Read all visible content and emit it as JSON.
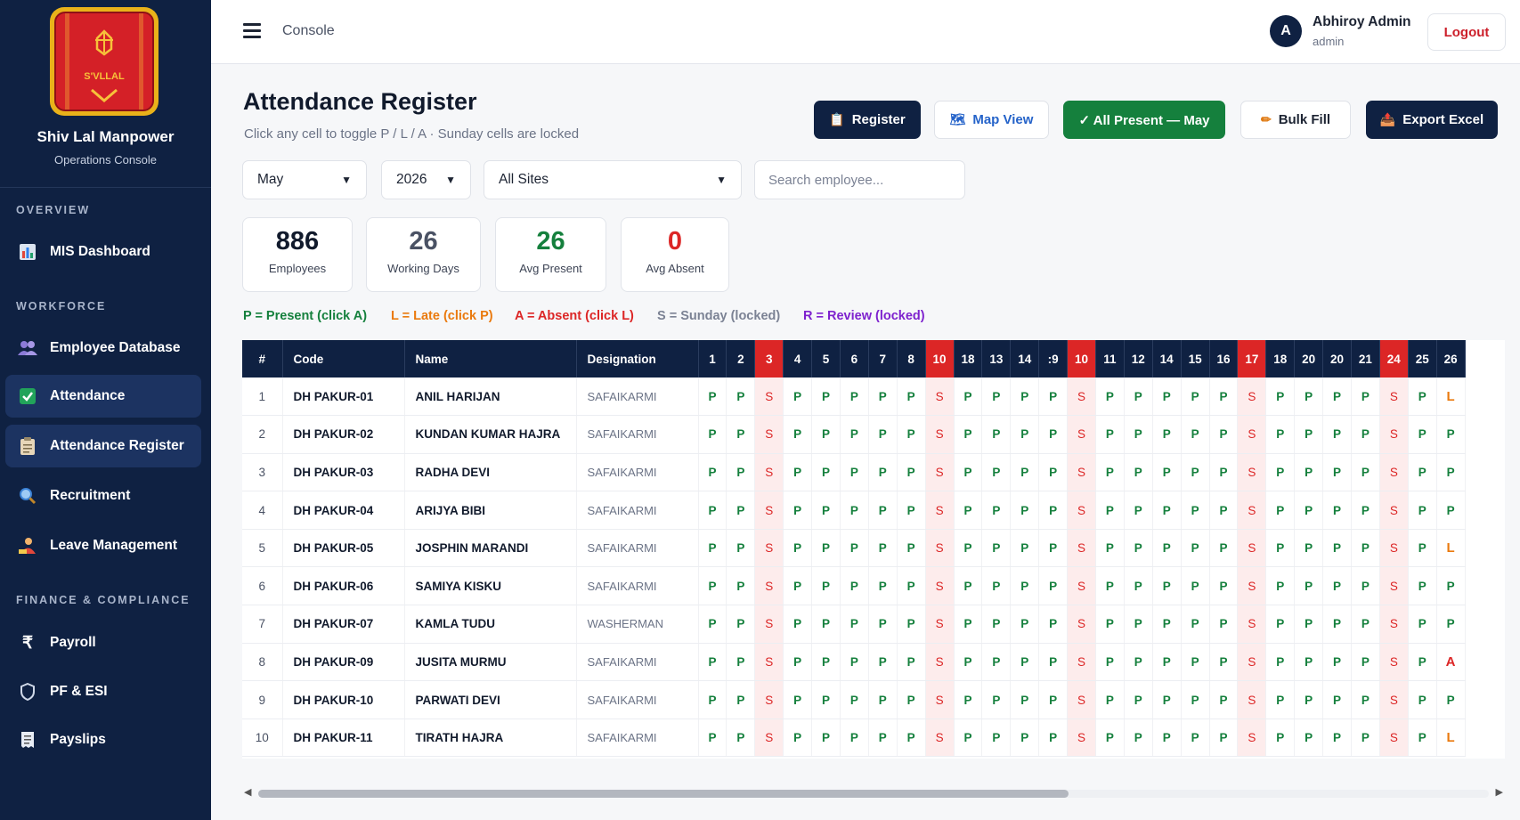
{
  "sidebar": {
    "brand": "Shiv Lal Manpower",
    "subtitle": "Operations Console",
    "sections": [
      "OVERVIEW",
      "WORKFORCE",
      "FINANCE & COMPLIANCE"
    ],
    "items": [
      {
        "label": "MIS Dashboard",
        "icon": "bar-chart-icon"
      },
      {
        "label": "Employee Database",
        "icon": "users-icon"
      },
      {
        "label": "Attendance",
        "icon": "check-box-icon"
      },
      {
        "label": "Attendance Register",
        "icon": "clipboard-icon"
      },
      {
        "label": "Recruitment",
        "icon": "magnifier-icon"
      },
      {
        "label": "Leave Management",
        "icon": "person-leave-icon"
      },
      {
        "label": "Payroll",
        "icon": "rupee-icon"
      },
      {
        "label": "PF & ESI",
        "icon": "shield-icon"
      },
      {
        "label": "Payslips",
        "icon": "receipt-icon"
      }
    ]
  },
  "topbar": {
    "title": "Console",
    "user_initial": "A",
    "user_name": "Abhiroy Admin",
    "user_role": "admin",
    "logout_label": "Logout"
  },
  "header": {
    "title": "Attendance Register",
    "subtitle": "Click any cell to toggle P / L / A  ·  Sunday cells are locked",
    "buttons": {
      "register": "Register",
      "map_view": "Map View",
      "all_present": "✓ All Present — May",
      "bulk_fill": "Bulk Fill",
      "export": "Export Excel"
    }
  },
  "filters": {
    "month": "May",
    "year": "2026",
    "site": "All Sites",
    "search_placeholder": "Search employee..."
  },
  "stats": [
    {
      "value": "886",
      "label": "Employees",
      "color": "#111a2c"
    },
    {
      "value": "26",
      "label": "Working Days",
      "color": "#4a5264"
    },
    {
      "value": "26",
      "label": "Avg Present",
      "color": "#15803d"
    },
    {
      "value": "0",
      "label": "Avg Absent",
      "color": "#dc2626"
    }
  ],
  "legend": [
    {
      "text": "P = Present (click A)",
      "color": "#15803d"
    },
    {
      "text": "L = Late (click P)",
      "color": "#ea7a0e"
    },
    {
      "text": "A = Absent (click L)",
      "color": "#dc2626"
    },
    {
      "text": "S = Sunday (locked)",
      "color": "#7b8294"
    },
    {
      "text": "R = Review (locked)",
      "color": "#7e22ce"
    }
  ],
  "table": {
    "headers": [
      "#",
      "Code",
      "Name",
      "Designation"
    ],
    "days": [
      "1",
      "2",
      "3",
      "4",
      "5",
      "6",
      "7",
      "8",
      "10",
      "18",
      "13",
      "14",
      ":9",
      "10",
      "11",
      "12",
      "14",
      "15",
      "16",
      "17",
      "18",
      "20",
      "20",
      "21",
      "24",
      "25",
      "26"
    ],
    "sunday_days": [
      2,
      8,
      13,
      19,
      24
    ],
    "rows": [
      {
        "idx": "1",
        "code": "DH PAKUR-01",
        "name": "ANIL HARIJAN",
        "designation": "SAFAIKARMI",
        "cells": [
          "P",
          "P",
          "S",
          "P",
          "P",
          "P",
          "P",
          "P",
          "S",
          "P",
          "P",
          "P",
          "P",
          "S",
          "P",
          "P",
          "P",
          "P",
          "P",
          "S",
          "P",
          "P",
          "P",
          "P",
          "S",
          "P",
          "L"
        ]
      },
      {
        "idx": "2",
        "code": "DH PAKUR-02",
        "name": "KUNDAN KUMAR HAJRA",
        "designation": "SAFAIKARMI",
        "cells": [
          "P",
          "P",
          "S",
          "P",
          "P",
          "P",
          "P",
          "P",
          "S",
          "P",
          "P",
          "P",
          "P",
          "S",
          "P",
          "P",
          "P",
          "P",
          "P",
          "S",
          "P",
          "P",
          "P",
          "P",
          "S",
          "P",
          "P"
        ]
      },
      {
        "idx": "3",
        "code": "DH PAKUR-03",
        "name": "RADHA DEVI",
        "designation": "SAFAIKARMI",
        "cells": [
          "P",
          "P",
          "S",
          "P",
          "P",
          "P",
          "P",
          "P",
          "S",
          "P",
          "P",
          "P",
          "P",
          "S",
          "P",
          "P",
          "P",
          "P",
          "P",
          "S",
          "P",
          "P",
          "P",
          "P",
          "S",
          "P",
          "P"
        ]
      },
      {
        "idx": "4",
        "code": "DH PAKUR-04",
        "name": "ARIJYA BIBI",
        "designation": "SAFAIKARMI",
        "cells": [
          "P",
          "P",
          "S",
          "P",
          "P",
          "P",
          "P",
          "P",
          "S",
          "P",
          "P",
          "P",
          "P",
          "S",
          "P",
          "P",
          "P",
          "P",
          "P",
          "S",
          "P",
          "P",
          "P",
          "P",
          "S",
          "P",
          "P"
        ]
      },
      {
        "idx": "5",
        "code": "DH PAKUR-05",
        "name": "JOSPHIN MARANDI",
        "designation": "SAFAIKARMI",
        "cells": [
          "P",
          "P",
          "S",
          "P",
          "P",
          "P",
          "P",
          "P",
          "S",
          "P",
          "P",
          "P",
          "P",
          "S",
          "P",
          "P",
          "P",
          "P",
          "P",
          "S",
          "P",
          "P",
          "P",
          "P",
          "S",
          "P",
          "L"
        ]
      },
      {
        "idx": "6",
        "code": "DH PAKUR-06",
        "name": "SAMIYA KISKU",
        "designation": "SAFAIKARMI",
        "cells": [
          "P",
          "P",
          "S",
          "P",
          "P",
          "P",
          "P",
          "P",
          "S",
          "P",
          "P",
          "P",
          "P",
          "S",
          "P",
          "P",
          "P",
          "P",
          "P",
          "S",
          "P",
          "P",
          "P",
          "P",
          "S",
          "P",
          "P"
        ]
      },
      {
        "idx": "7",
        "code": "DH PAKUR-07",
        "name": "KAMLA TUDU",
        "designation": "WASHERMAN",
        "cells": [
          "P",
          "P",
          "S",
          "P",
          "P",
          "P",
          "P",
          "P",
          "S",
          "P",
          "P",
          "P",
          "P",
          "S",
          "P",
          "P",
          "P",
          "P",
          "P",
          "S",
          "P",
          "P",
          "P",
          "P",
          "S",
          "P",
          "P"
        ]
      },
      {
        "idx": "8",
        "code": "DH PAKUR-09",
        "name": "JUSITA MURMU",
        "designation": "SAFAIKARMI",
        "cells": [
          "P",
          "P",
          "S",
          "P",
          "P",
          "P",
          "P",
          "P",
          "S",
          "P",
          "P",
          "P",
          "P",
          "S",
          "P",
          "P",
          "P",
          "P",
          "P",
          "S",
          "P",
          "P",
          "P",
          "P",
          "S",
          "P",
          "A"
        ]
      },
      {
        "idx": "9",
        "code": "DH PAKUR-10",
        "name": "PARWATI DEVI",
        "designation": "SAFAIKARMI",
        "cells": [
          "P",
          "P",
          "S",
          "P",
          "P",
          "P",
          "P",
          "P",
          "S",
          "P",
          "P",
          "P",
          "P",
          "S",
          "P",
          "P",
          "P",
          "P",
          "P",
          "S",
          "P",
          "P",
          "P",
          "P",
          "S",
          "P",
          "P"
        ]
      },
      {
        "idx": "10",
        "code": "DH PAKUR-11",
        "name": "TIRATH HAJRA",
        "designation": "SAFAIKARMI",
        "cells": [
          "P",
          "P",
          "S",
          "P",
          "P",
          "P",
          "P",
          "P",
          "S",
          "P",
          "P",
          "P",
          "P",
          "S",
          "P",
          "P",
          "P",
          "P",
          "P",
          "S",
          "P",
          "P",
          "P",
          "P",
          "S",
          "P",
          "L"
        ]
      }
    ]
  }
}
